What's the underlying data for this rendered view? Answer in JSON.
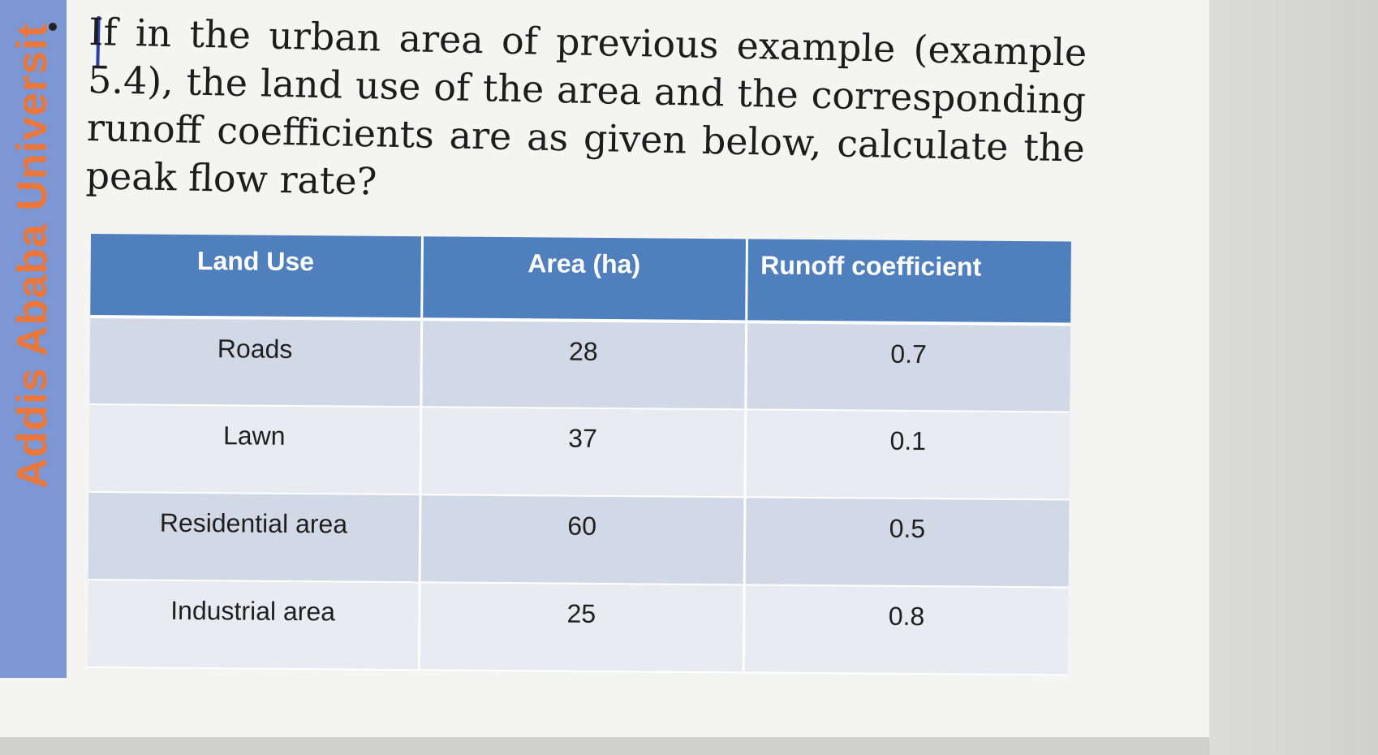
{
  "sidebar": {
    "label": "Addis Ababa Universit"
  },
  "question": {
    "text": "If in the urban area of previous example (example 5.4), the land use of the area and the corresponding runoff coefficients are as given below, calculate the peak flow rate?"
  },
  "table": {
    "headers": [
      "Land Use",
      "Area (ha)",
      "Runoff coefficient"
    ],
    "rows": [
      [
        "Roads",
        "28",
        "0.7"
      ],
      [
        "Lawn",
        "37",
        "0.1"
      ],
      [
        "Residential area",
        "60",
        "0.5"
      ],
      [
        "Industrial area",
        "25",
        "0.8"
      ]
    ]
  },
  "colors": {
    "header_bg": "#4f80bd",
    "row_odd_bg": "#d1d9e6",
    "row_even_bg": "#e8ebf1",
    "sidebar_bg": "#7c97d3",
    "sidebar_text": "#e9763a"
  }
}
